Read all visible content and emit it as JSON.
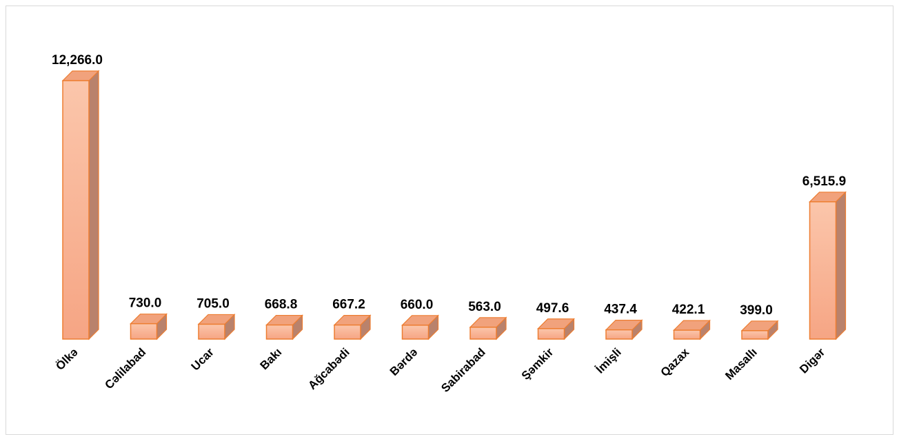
{
  "chart_data": {
    "type": "bar",
    "categories": [
      "Ölkə",
      "Cəlilabad",
      "Ucar",
      "Bakı",
      "Ağcabədi",
      "Bərdə",
      "Sabirabad",
      "Şəmkir",
      "İmişli",
      "Qazax",
      "Masallı",
      "Digər"
    ],
    "values": [
      12266.0,
      730.0,
      705.0,
      668.8,
      667.2,
      660.0,
      563.0,
      497.6,
      437.4,
      422.1,
      399.0,
      6515.9
    ],
    "value_labels": [
      "12,266.0",
      "730.0",
      "705.0",
      "668.8",
      "667.2",
      "660.0",
      "563.0",
      "497.6",
      "437.4",
      "422.1",
      "399.0",
      "6,515.9"
    ],
    "color": "#f4a882"
  }
}
